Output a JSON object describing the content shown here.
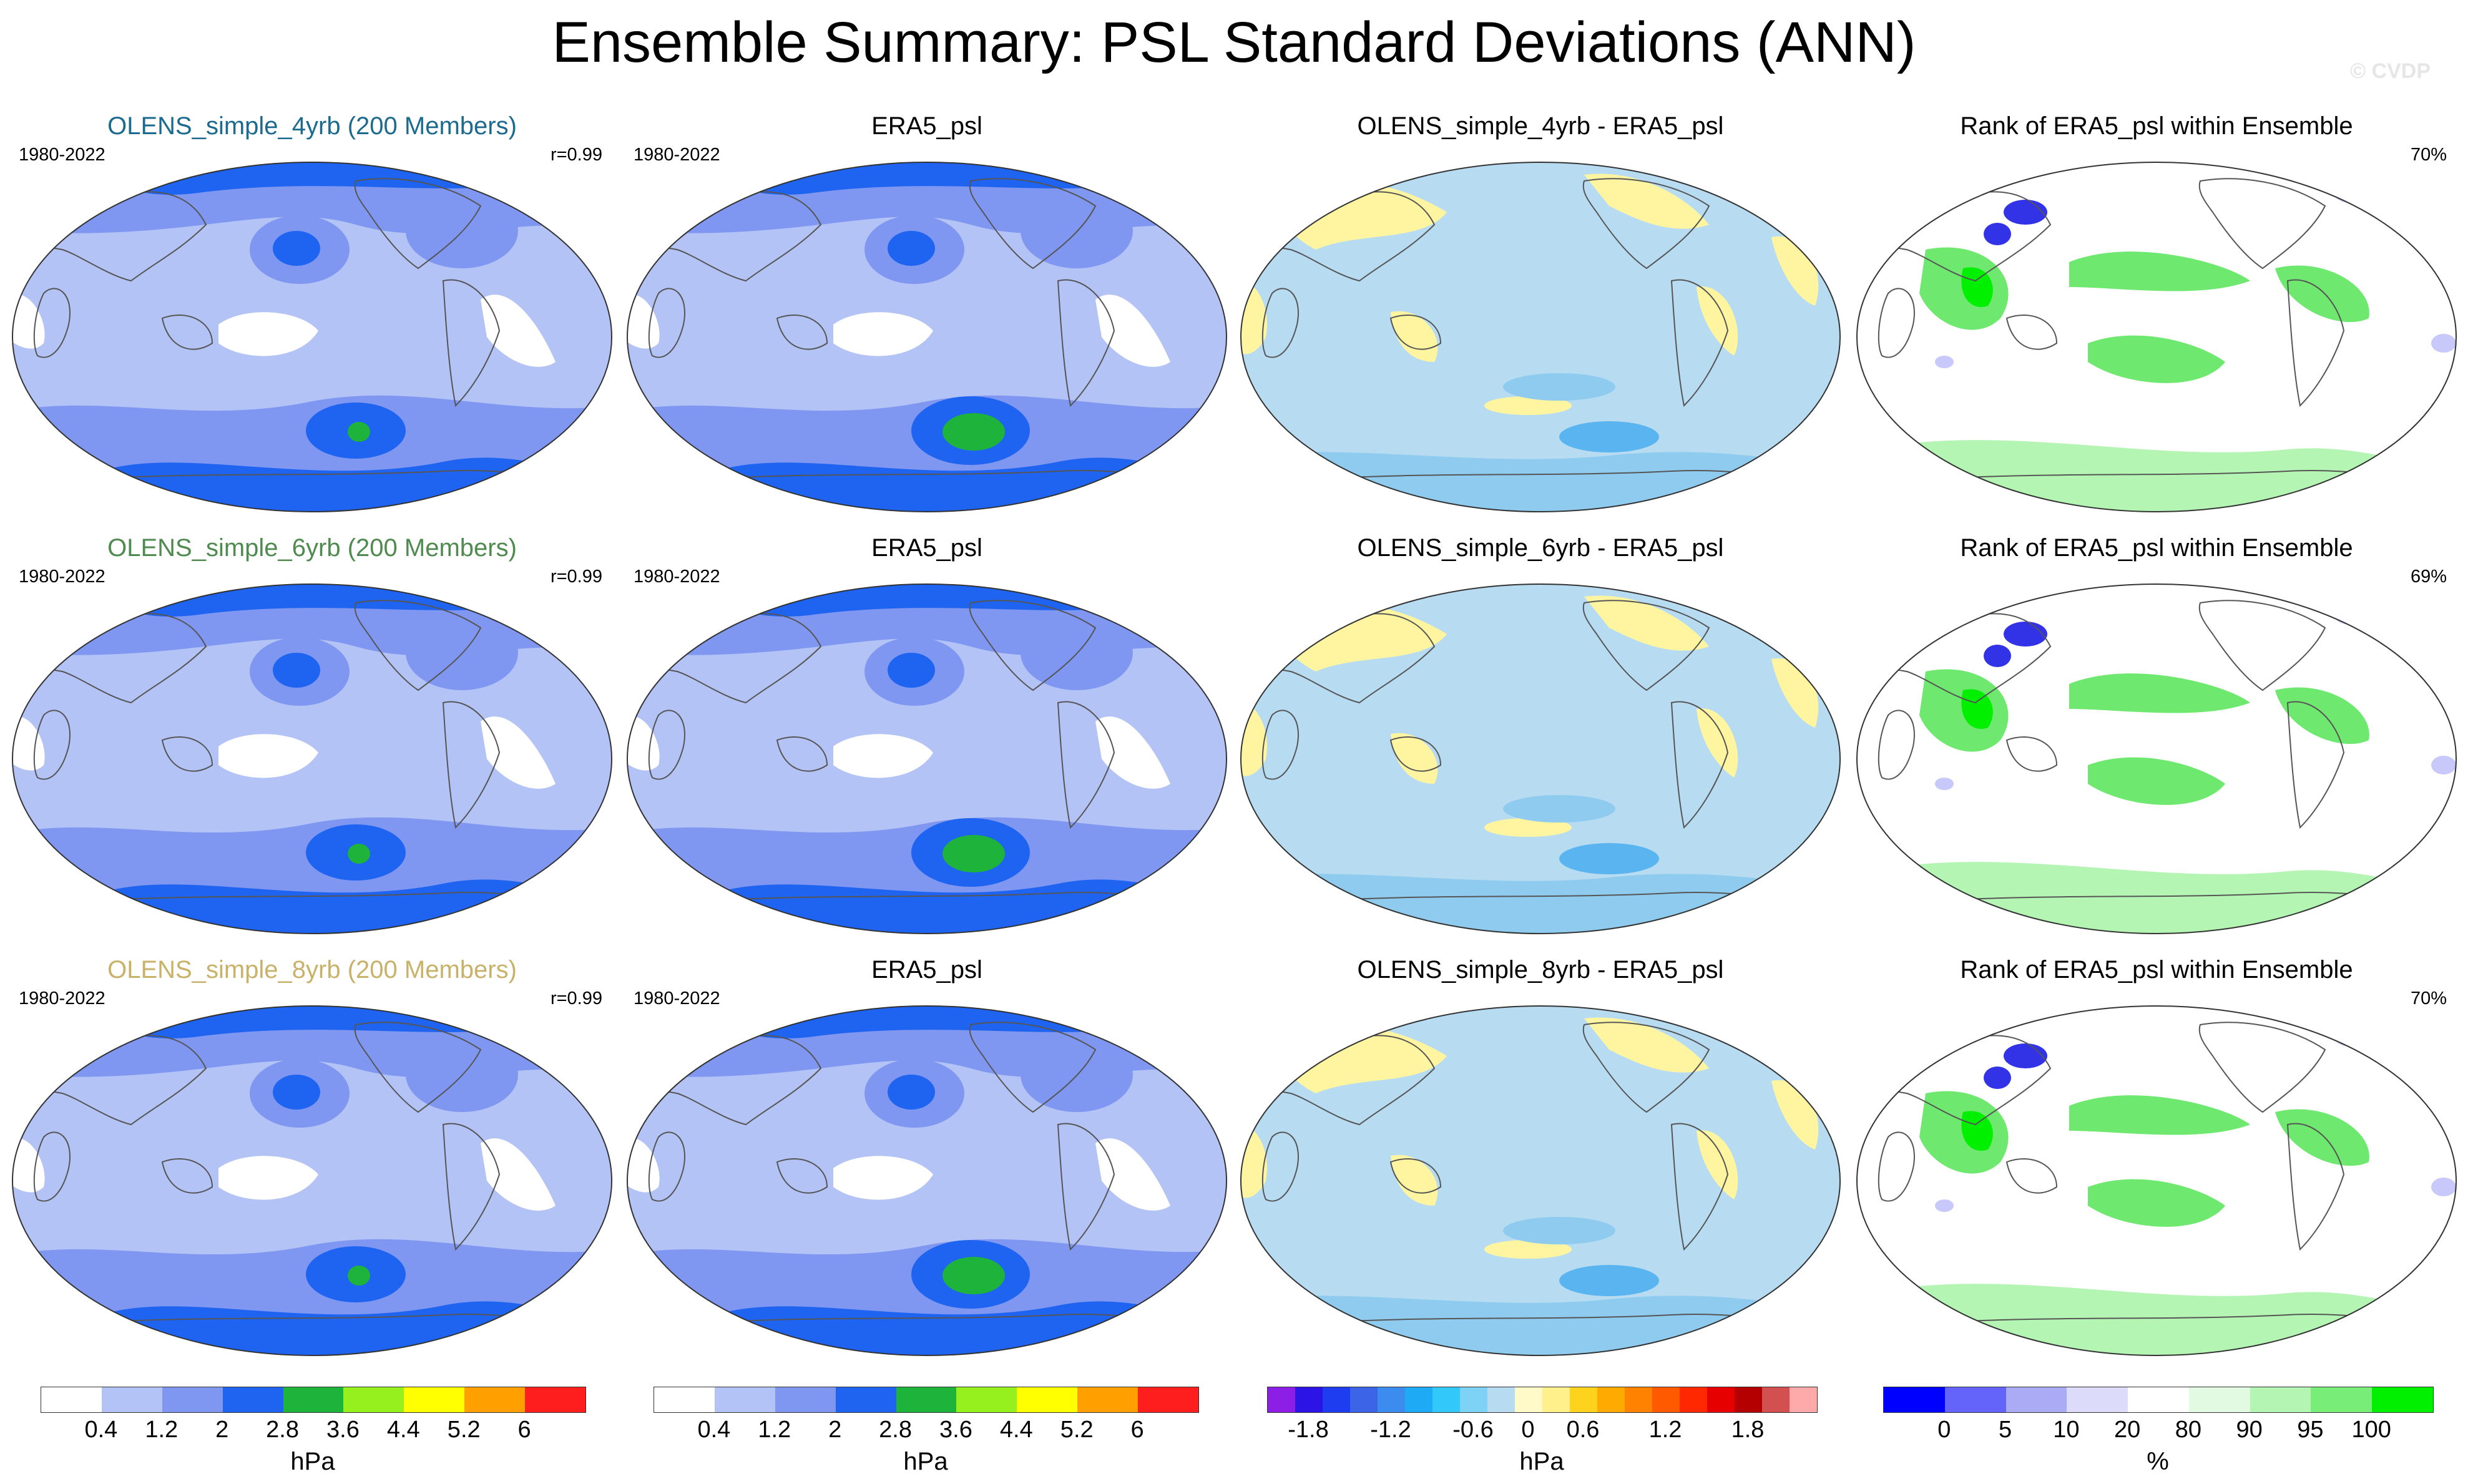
{
  "title": "Ensemble Summary: PSL Standard Deviations (ANN)",
  "copyright": "© CVDP",
  "colors": {
    "model_title_4yrb": "#1c6b8f",
    "model_title_6yrb": "#4f8a4f",
    "model_title_8yrb": "#c8b26a",
    "sd_0_04": "#ffffff",
    "sd_04_12": "#b4c3f5",
    "sd_12_2": "#7f97f0",
    "sd_2_28": "#1e64f0",
    "sd_28_36": "#1eb43c",
    "diff_neg": "#b7dcf2",
    "diff_neg2": "#8ecbef",
    "diff_pos": "#fff5a0",
    "rank_low": "#3232e6",
    "rank_mid": "#c8c8fa",
    "rank_high": "#6fe86f",
    "rank_top": "#00f000"
  },
  "rows": [
    {
      "model": {
        "title": "OLENS_simple_4yrb (200 Members)",
        "period": "1980-2022",
        "r": "r=0.99",
        "title_color": "#1c6b8f"
      },
      "obs": {
        "title": "ERA5_psl",
        "period": "1980-2022"
      },
      "diff": {
        "title": "OLENS_simple_4yrb - ERA5_psl"
      },
      "rank": {
        "title": "Rank of ERA5_psl within Ensemble",
        "pct": "70%"
      }
    },
    {
      "model": {
        "title": "OLENS_simple_6yrb (200 Members)",
        "period": "1980-2022",
        "r": "r=0.99",
        "title_color": "#4f8a4f"
      },
      "obs": {
        "title": "ERA5_psl",
        "period": "1980-2022"
      },
      "diff": {
        "title": "OLENS_simple_6yrb - ERA5_psl"
      },
      "rank": {
        "title": "Rank of ERA5_psl within Ensemble",
        "pct": "69%"
      }
    },
    {
      "model": {
        "title": "OLENS_simple_8yrb (200 Members)",
        "period": "1980-2022",
        "r": "r=0.99",
        "title_color": "#c8b26a"
      },
      "obs": {
        "title": "ERA5_psl",
        "period": "1980-2022"
      },
      "diff": {
        "title": "OLENS_simple_8yrb - ERA5_psl"
      },
      "rank": {
        "title": "Rank of ERA5_psl within Ensemble",
        "pct": "70%"
      }
    }
  ],
  "colorbars": {
    "sd": {
      "colors": [
        "#ffffff",
        "#b4c3f5",
        "#7f97f0",
        "#1e64f0",
        "#1eb43c",
        "#96f01e",
        "#ffff00",
        "#ffa000",
        "#ff1e1e"
      ],
      "ticks": [
        "0.4",
        "1.2",
        "2",
        "2.8",
        "3.6",
        "4.4",
        "5.2",
        "6"
      ],
      "unit": "hPa"
    },
    "diff": {
      "colors": [
        "#8c1ee6",
        "#2d14e6",
        "#1e3cf0",
        "#3c64e6",
        "#3c8cf0",
        "#1eaaf5",
        "#32c8fa",
        "#7dd2f5",
        "#b7dcf2",
        "#fffac8",
        "#fff08c",
        "#ffd21e",
        "#ffaa00",
        "#ff8200",
        "#ff5a00",
        "#ff2800",
        "#e60000",
        "#b40000",
        "#d25050",
        "#ffaaaa"
      ],
      "ticks": [
        "-1.8",
        "-1.2",
        "-0.6",
        "0",
        "0.6",
        "1.2",
        "1.8"
      ],
      "unit": "hPa"
    },
    "rank": {
      "colors": [
        "#0000ff",
        "#6464fa",
        "#aaaaf5",
        "#dcdcfa",
        "#ffffff",
        "#e1fae1",
        "#b4f5b4",
        "#78ee78",
        "#00f000"
      ],
      "ticks": [
        "0",
        "5",
        "10",
        "20",
        "80",
        "90",
        "95",
        "100"
      ],
      "unit": "%"
    }
  }
}
